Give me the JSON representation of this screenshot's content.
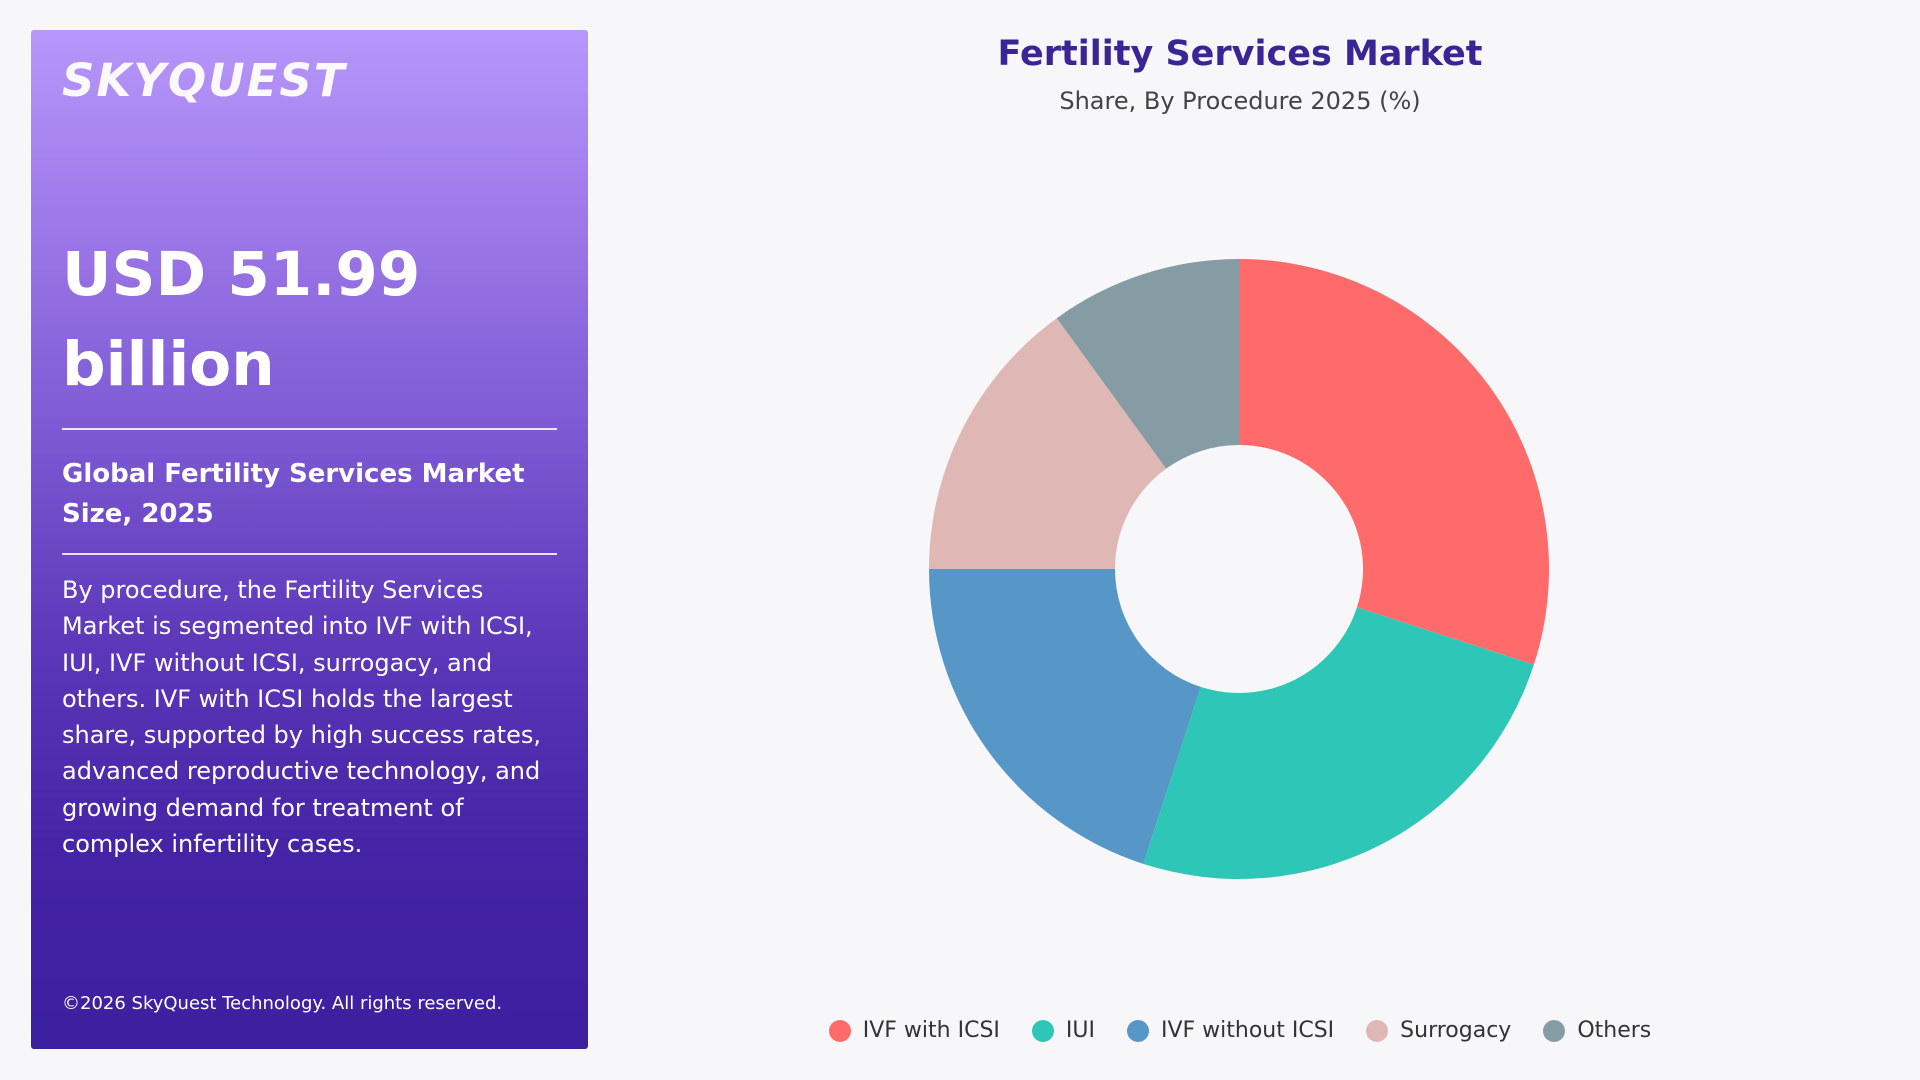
{
  "brand": {
    "logo_text": "SKYQUEST"
  },
  "summary": {
    "value": "USD 51.99 billion",
    "heading": "Global Fertility Services Market Size, 2025",
    "description": "By procedure, the Fertility Services Market is segmented into IVF with ICSI, IUI, IVF without ICSI, surrogacy, and others. IVF with ICSI holds the largest share, supported by high success rates, advanced reproductive technology, and growing demand for treatment of complex infertility cases.",
    "copyright": "©2026 SkyQuest Technology. All rights reserved."
  },
  "chart_data": {
    "type": "pie",
    "title": "Fertility Services Market",
    "subtitle": "Share, By Procedure 2025 (%)",
    "categories": [
      "IVF with ICSI",
      "IUI",
      "IVF without ICSI",
      "Surrogacy",
      "Others"
    ],
    "values": [
      30,
      25,
      20,
      15,
      10
    ],
    "colors": [
      "#ff6b6b",
      "#2ec7b7",
      "#5797c8",
      "#dfb8b5",
      "#869ca4"
    ],
    "donut": true,
    "legend_position": "bottom"
  }
}
